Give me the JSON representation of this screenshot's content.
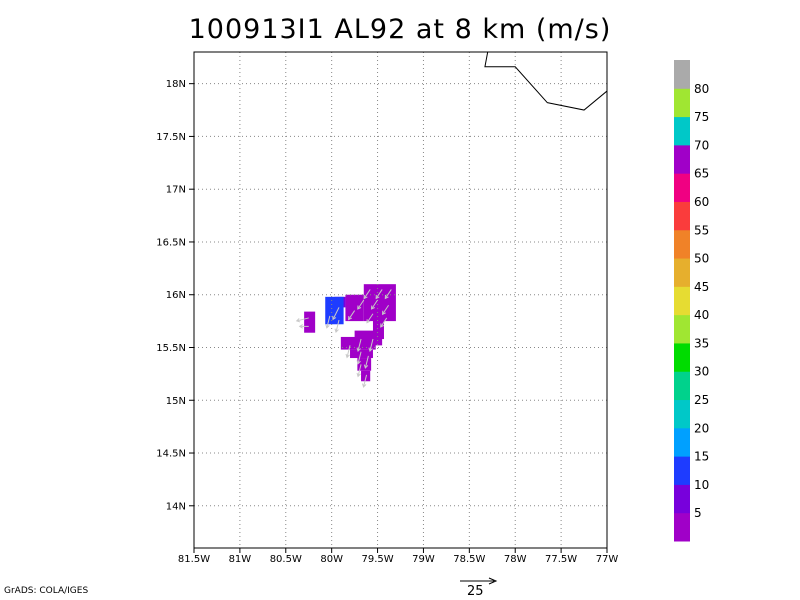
{
  "title": "100913I1 AL92 at 8 km (m/s)",
  "credit": "GrADS: COLA/IGES",
  "reference_vector": {
    "label": "25",
    "value": 25
  },
  "map": {
    "lon_range": [
      -81.5,
      -77.0
    ],
    "lat_range": [
      13.6,
      18.3
    ],
    "lon_ticks": [
      {
        "value": -81.5,
        "label": "81.5W"
      },
      {
        "value": -81.0,
        "label": "81W"
      },
      {
        "value": -80.5,
        "label": "80.5W"
      },
      {
        "value": -80.0,
        "label": "80W"
      },
      {
        "value": -79.5,
        "label": "79.5W"
      },
      {
        "value": -79.0,
        "label": "79W"
      },
      {
        "value": -78.5,
        "label": "78.5W"
      },
      {
        "value": -78.0,
        "label": "78W"
      },
      {
        "value": -77.5,
        "label": "77.5W"
      },
      {
        "value": -77.0,
        "label": "77W"
      }
    ],
    "lat_ticks": [
      {
        "value": 14.0,
        "label": "14N"
      },
      {
        "value": 14.5,
        "label": "14.5N"
      },
      {
        "value": 15.0,
        "label": "15N"
      },
      {
        "value": 15.5,
        "label": "15.5N"
      },
      {
        "value": 16.0,
        "label": "16N"
      },
      {
        "value": 16.5,
        "label": "16.5N"
      },
      {
        "value": 17.0,
        "label": "17N"
      },
      {
        "value": 17.5,
        "label": "17.5N"
      },
      {
        "value": 18.0,
        "label": "18N"
      }
    ],
    "grid": true,
    "coastline": [
      [
        -78.3,
        18.3
      ],
      [
        -78.33,
        18.16
      ],
      [
        -78.0,
        18.16
      ],
      [
        -77.65,
        17.82
      ],
      [
        -77.25,
        17.75
      ],
      [
        -77.0,
        17.93
      ]
    ]
  },
  "colorbar": {
    "colors": [
      "#a000c8",
      "#7800dc",
      "#1e3cff",
      "#00a0ff",
      "#00c8c8",
      "#00d28c",
      "#00dc00",
      "#a0e632",
      "#e6dc32",
      "#e6af2d",
      "#f08228",
      "#fa3c3c",
      "#f00082",
      "#a000c8",
      "#00c8c8",
      "#a0e632",
      "#aaaaaa"
    ],
    "labels": [
      "5",
      "10",
      "15",
      "20",
      "25",
      "30",
      "35",
      "40",
      "45",
      "50",
      "55",
      "60",
      "65",
      "70",
      "75",
      "80"
    ]
  },
  "chart_data": {
    "type": "heatmap",
    "title": "100913I1 AL92 at 8 km (m/s)",
    "units": "m/s",
    "grid_step_deg": 0.05,
    "cells": [
      {
        "lon": -79.65,
        "lat": 16.1,
        "lon_end": -79.3,
        "lat_end": 15.75,
        "speed": 4
      },
      {
        "lon": -79.85,
        "lat": 16.0,
        "lon_end": -79.65,
        "lat_end": 15.75,
        "speed": 4
      },
      {
        "lon": -79.97,
        "lat": 15.98,
        "lon_end": -79.85,
        "lat_end": 15.88,
        "speed": 7
      },
      {
        "lon": -80.07,
        "lat": 15.98,
        "lon_end": -79.87,
        "lat_end": 15.72,
        "speed": 13
      },
      {
        "lon": -80.3,
        "lat": 15.84,
        "lon_end": -80.18,
        "lat_end": 15.64,
        "speed": 4
      },
      {
        "lon": -79.55,
        "lat": 15.78,
        "lon_end": -79.43,
        "lat_end": 15.58,
        "speed": 4
      },
      {
        "lon": -79.75,
        "lat": 15.66,
        "lon_end": -79.45,
        "lat_end": 15.52,
        "speed": 4
      },
      {
        "lon": -79.9,
        "lat": 15.6,
        "lon_end": -79.52,
        "lat_end": 15.48,
        "speed": 4
      },
      {
        "lon": -79.8,
        "lat": 15.48,
        "lon_end": -79.55,
        "lat_end": 15.4,
        "speed": 4
      },
      {
        "lon": -79.72,
        "lat": 15.4,
        "lon_end": -79.57,
        "lat_end": 15.28,
        "speed": 4
      },
      {
        "lon": -79.68,
        "lat": 15.28,
        "lon_end": -79.58,
        "lat_end": 15.18,
        "speed": 4
      }
    ],
    "vectors": [
      {
        "lon": -79.58,
        "lat": 16.05,
        "u": -2,
        "v": -3
      },
      {
        "lon": -79.45,
        "lat": 16.05,
        "u": -2,
        "v": -3
      },
      {
        "lon": -79.35,
        "lat": 16.05,
        "u": -2,
        "v": -3
      },
      {
        "lon": -79.65,
        "lat": 15.95,
        "u": -2,
        "v": -3
      },
      {
        "lon": -79.5,
        "lat": 15.95,
        "u": -2,
        "v": -3
      },
      {
        "lon": -79.38,
        "lat": 15.9,
        "u": -2,
        "v": -3
      },
      {
        "lon": -79.75,
        "lat": 15.85,
        "u": -2,
        "v": -3
      },
      {
        "lon": -79.55,
        "lat": 15.82,
        "u": -2,
        "v": -3
      },
      {
        "lon": -79.4,
        "lat": 15.78,
        "u": -2,
        "v": -3
      },
      {
        "lon": -79.92,
        "lat": 15.88,
        "u": -2,
        "v": -4
      },
      {
        "lon": -80.02,
        "lat": 15.8,
        "u": -1,
        "v": -4
      },
      {
        "lon": -79.92,
        "lat": 15.76,
        "u": -1,
        "v": -4
      },
      {
        "lon": -80.25,
        "lat": 15.78,
        "u": -4,
        "v": -1
      },
      {
        "lon": -80.25,
        "lat": 15.7,
        "u": -3,
        "v": 0
      },
      {
        "lon": -79.68,
        "lat": 15.58,
        "u": -1,
        "v": -4
      },
      {
        "lon": -79.55,
        "lat": 15.58,
        "u": -1,
        "v": -4
      },
      {
        "lon": -79.8,
        "lat": 15.52,
        "u": -1,
        "v": -4
      },
      {
        "lon": -79.68,
        "lat": 15.46,
        "u": -1,
        "v": -4
      },
      {
        "lon": -79.6,
        "lat": 15.42,
        "u": -1,
        "v": -4
      },
      {
        "lon": -79.68,
        "lat": 15.34,
        "u": -1,
        "v": -4
      },
      {
        "lon": -79.62,
        "lat": 15.24,
        "u": -1,
        "v": -4
      }
    ]
  }
}
